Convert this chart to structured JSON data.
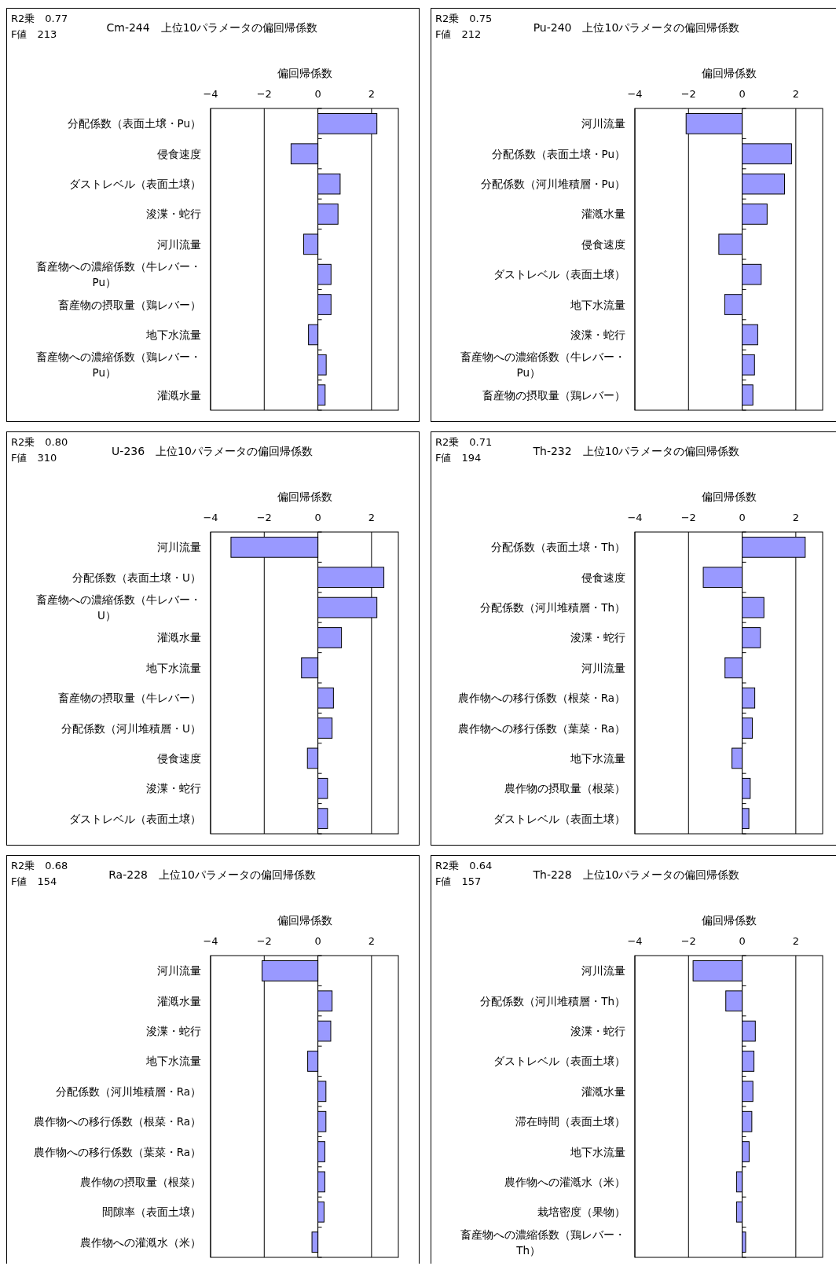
{
  "chart_data": [
    {
      "type": "bar",
      "orientation": "horizontal",
      "title": "Cm-244　上位10パラメータの偏回帰係数",
      "xlabel": "偏回帰係数",
      "annotations": [
        "R2乗　0.77",
        "F値　213"
      ],
      "categories": [
        "分配係数（表面土壌・Pu）",
        "侵食速度",
        "ダストレベル（表面土壌）",
        "浚渫・蛇行",
        "河川流量",
        "畜産物への濃縮係数（牛レバー・Pu）",
        "畜産物の摂取量（鶏レバー）",
        "地下水流量",
        "畜産物への濃縮係数（鶏レバー・Pu）",
        "灌漑水量"
      ],
      "values": [
        2.2,
        -1.0,
        0.83,
        0.75,
        -0.53,
        0.49,
        0.49,
        -0.35,
        0.31,
        0.27
      ],
      "color": "#9999ff",
      "xlim": [
        -4,
        3
      ],
      "xticks": [
        -4,
        -2,
        0,
        2
      ],
      "grid": "x"
    },
    {
      "type": "bar",
      "orientation": "horizontal",
      "title": "Pu-240　上位10パラメータの偏回帰係数",
      "xlabel": "偏回帰係数",
      "annotations": [
        "R2乗　0.75",
        "F値　212"
      ],
      "categories": [
        "河川流量",
        "分配係数（表面土壌・Pu）",
        "分配係数（河川堆積層・Pu）",
        "灌漑水量",
        "侵食速度",
        "ダストレベル（表面土壌）",
        "地下水流量",
        "浚渫・蛇行",
        "畜産物への濃縮係数（牛レバー・Pu）",
        "畜産物の摂取量（鶏レバー）"
      ],
      "values": [
        -2.09,
        1.84,
        1.58,
        0.93,
        -0.87,
        0.71,
        -0.65,
        0.58,
        0.46,
        0.4
      ],
      "color": "#9999ff",
      "xlim": [
        -4,
        3
      ],
      "xticks": [
        -4,
        -2,
        0,
        2
      ],
      "grid": "x"
    },
    {
      "type": "bar",
      "orientation": "horizontal",
      "title": "U-236　上位10パラメータの偏回帰係数",
      "xlabel": "偏回帰係数",
      "annotations": [
        "R2乗　0.80",
        "F値　310"
      ],
      "categories": [
        "河川流量",
        "分配係数（表面土壌・U）",
        "畜産物への濃縮係数（牛レバー・U）",
        "灌漑水量",
        "地下水流量",
        "畜産物の摂取量（牛レバー）",
        "分配係数（河川堆積層・U）",
        "侵食速度",
        "浚渫・蛇行",
        "ダストレベル（表面土壌）"
      ],
      "values": [
        -3.24,
        2.46,
        2.2,
        0.88,
        -0.61,
        0.58,
        0.53,
        -0.39,
        0.36,
        0.36
      ],
      "color": "#9999ff",
      "xlim": [
        -4,
        3
      ],
      "xticks": [
        -4,
        -2,
        0,
        2
      ],
      "grid": "x"
    },
    {
      "type": "bar",
      "orientation": "horizontal",
      "title": "Th-232　上位10パラメータの偏回帰係数",
      "xlabel": "偏回帰係数",
      "annotations": [
        "R2乗　0.71",
        "F値　194"
      ],
      "categories": [
        "分配係数（表面土壌・Th）",
        "侵食速度",
        "分配係数（河川堆積層・Th）",
        "浚渫・蛇行",
        "河川流量",
        "農作物への移行係数（根菜・Ra）",
        "農作物への移行係数（葉菜・Ra）",
        "地下水流量",
        "農作物の摂取量（根菜）",
        "ダストレベル（表面土壌）"
      ],
      "values": [
        2.35,
        -1.45,
        0.81,
        0.68,
        -0.64,
        0.47,
        0.38,
        -0.38,
        0.3,
        0.25
      ],
      "color": "#9999ff",
      "xlim": [
        -4,
        3
      ],
      "xticks": [
        -4,
        -2,
        0,
        2
      ],
      "grid": "x"
    },
    {
      "type": "bar",
      "orientation": "horizontal",
      "title": "Ra-228　上位10パラメータの偏回帰係数",
      "xlabel": "偏回帰係数",
      "annotations": [
        "R2乗　0.68",
        "F値　154"
      ],
      "categories": [
        "河川流量",
        "灌漑水量",
        "浚渫・蛇行",
        "地下水流量",
        "分配係数（河川堆積層・Ra）",
        "農作物への移行係数（根菜・Ra）",
        "農作物への移行係数（葉菜・Ra）",
        "農作物の摂取量（根菜）",
        "間隙率（表面土壌）",
        "農作物への灌漑水（米）"
      ],
      "values": [
        -2.08,
        0.53,
        0.48,
        -0.38,
        0.3,
        0.3,
        0.26,
        0.26,
        0.23,
        -0.22
      ],
      "color": "#9999ff",
      "xlim": [
        -4,
        3
      ],
      "xticks": [
        -4,
        -2,
        0,
        2
      ],
      "grid": "x"
    },
    {
      "type": "bar",
      "orientation": "horizontal",
      "title": "Th-228　上位10パラメータの偏回帰係数",
      "xlabel": "偏回帰係数",
      "annotations": [
        "R2乗　0.64",
        "F値　157"
      ],
      "categories": [
        "河川流量",
        "分配係数（河川堆積層・Th）",
        "浚渫・蛇行",
        "ダストレベル（表面土壌）",
        "灌漑水量",
        "滞在時間（表面土壌）",
        "地下水流量",
        "農作物への灌漑水（米）",
        "栽培密度（果物）",
        "畜産物への濃縮係数（鶏レバー・Th）"
      ],
      "values": [
        -1.83,
        -0.61,
        0.49,
        0.44,
        0.4,
        0.36,
        0.26,
        -0.21,
        -0.21,
        0.13
      ],
      "color": "#9999ff",
      "xlim": [
        -4,
        3
      ],
      "xticks": [
        -4,
        -2,
        0,
        2
      ],
      "grid": "x"
    }
  ]
}
